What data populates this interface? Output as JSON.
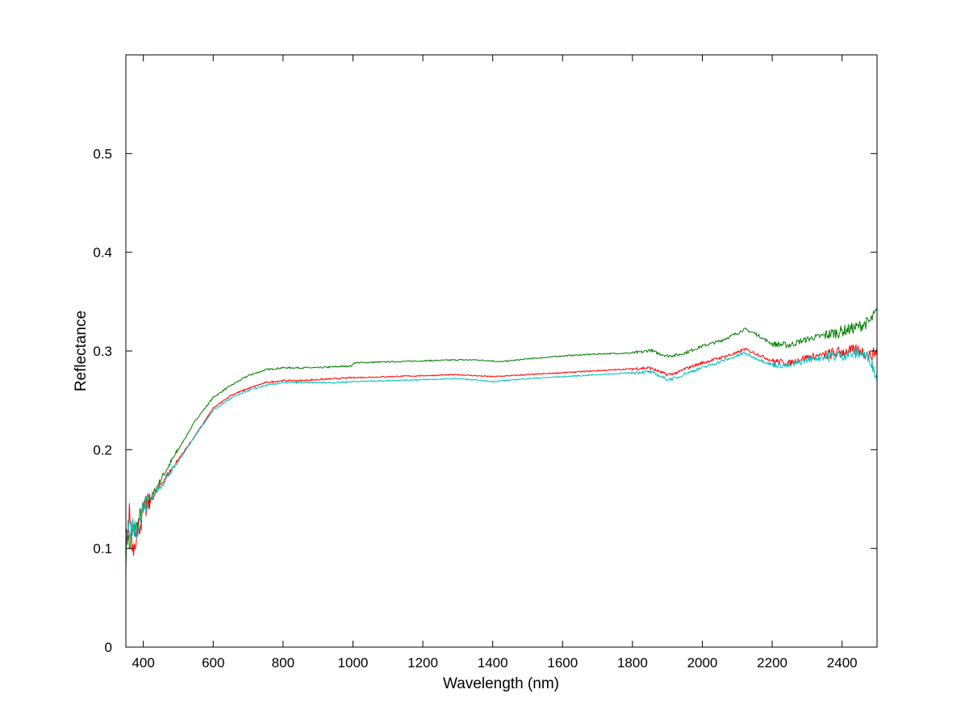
{
  "chart_data": {
    "type": "line",
    "title": "",
    "xlabel": "Wavelength (nm)",
    "ylabel": "Reflectance",
    "xlim": [
      350,
      2500
    ],
    "ylim": [
      0,
      0.6
    ],
    "x_ticks": [
      400,
      600,
      800,
      1000,
      1200,
      1400,
      1600,
      1800,
      2000,
      2200,
      2400
    ],
    "y_ticks": [
      0,
      0.1,
      0.2,
      0.3,
      0.4,
      0.5
    ],
    "x_tick_labels": [
      "400",
      "600",
      "800",
      "1000",
      "1200",
      "1400",
      "1600",
      "1800",
      "2000",
      "2200",
      "2400"
    ],
    "y_tick_labels": [
      "0",
      "0.1",
      "0.2",
      "0.3",
      "0.4",
      "0.5"
    ],
    "grid": false,
    "legend": "none",
    "series": [
      {
        "color": "#007f00",
        "x": [
          350,
          355,
          360,
          370,
          380,
          390,
          400,
          420,
          450,
          500,
          550,
          600,
          650,
          700,
          750,
          800,
          850,
          900,
          950,
          999,
          1001,
          1100,
          1200,
          1300,
          1350,
          1400,
          1420,
          1500,
          1600,
          1700,
          1800,
          1830,
          1850,
          1870,
          1900,
          1930,
          1950,
          2000,
          2050,
          2100,
          2120,
          2150,
          2200,
          2250,
          2300,
          2350,
          2400,
          2450,
          2480,
          2500
        ],
        "y": [
          0.09,
          0.12,
          0.1,
          0.115,
          0.12,
          0.13,
          0.138,
          0.15,
          0.17,
          0.2,
          0.23,
          0.253,
          0.265,
          0.275,
          0.281,
          0.283,
          0.283,
          0.283,
          0.284,
          0.285,
          0.288,
          0.289,
          0.29,
          0.291,
          0.291,
          0.29,
          0.289,
          0.292,
          0.295,
          0.297,
          0.298,
          0.299,
          0.301,
          0.298,
          0.295,
          0.296,
          0.298,
          0.305,
          0.31,
          0.318,
          0.322,
          0.318,
          0.307,
          0.306,
          0.312,
          0.316,
          0.32,
          0.325,
          0.33,
          0.34
        ]
      },
      {
        "color": "#ff0000",
        "x": [
          350,
          355,
          360,
          370,
          380,
          390,
          400,
          420,
          450,
          500,
          550,
          600,
          650,
          700,
          750,
          800,
          850,
          900,
          950,
          1000,
          1100,
          1200,
          1300,
          1400,
          1500,
          1600,
          1700,
          1800,
          1850,
          1870,
          1900,
          1930,
          1950,
          2000,
          2050,
          2100,
          2120,
          2150,
          2200,
          2250,
          2300,
          2350,
          2400,
          2450,
          2480,
          2500
        ],
        "y": [
          0.13,
          0.1,
          0.14,
          0.1,
          0.115,
          0.125,
          0.135,
          0.148,
          0.165,
          0.19,
          0.215,
          0.242,
          0.255,
          0.262,
          0.268,
          0.27,
          0.27,
          0.271,
          0.272,
          0.273,
          0.274,
          0.275,
          0.276,
          0.274,
          0.276,
          0.278,
          0.28,
          0.282,
          0.283,
          0.28,
          0.276,
          0.278,
          0.282,
          0.288,
          0.293,
          0.298,
          0.302,
          0.298,
          0.29,
          0.288,
          0.294,
          0.296,
          0.299,
          0.301,
          0.295,
          0.3
        ]
      },
      {
        "color": "#00bfbf",
        "x": [
          350,
          355,
          360,
          370,
          380,
          390,
          400,
          420,
          450,
          500,
          550,
          600,
          650,
          700,
          750,
          800,
          850,
          900,
          950,
          1000,
          1100,
          1200,
          1300,
          1400,
          1500,
          1600,
          1700,
          1800,
          1850,
          1870,
          1900,
          1930,
          1950,
          2000,
          2050,
          2100,
          2120,
          2150,
          2200,
          2250,
          2300,
          2350,
          2400,
          2450,
          2480,
          2500
        ],
        "y": [
          0.1,
          0.13,
          0.11,
          0.125,
          0.12,
          0.13,
          0.14,
          0.15,
          0.163,
          0.188,
          0.215,
          0.24,
          0.252,
          0.26,
          0.265,
          0.268,
          0.268,
          0.268,
          0.268,
          0.269,
          0.27,
          0.271,
          0.272,
          0.269,
          0.272,
          0.274,
          0.276,
          0.278,
          0.279,
          0.276,
          0.271,
          0.273,
          0.277,
          0.283,
          0.289,
          0.295,
          0.298,
          0.293,
          0.286,
          0.285,
          0.291,
          0.294,
          0.296,
          0.298,
          0.292,
          0.272
        ]
      }
    ]
  }
}
